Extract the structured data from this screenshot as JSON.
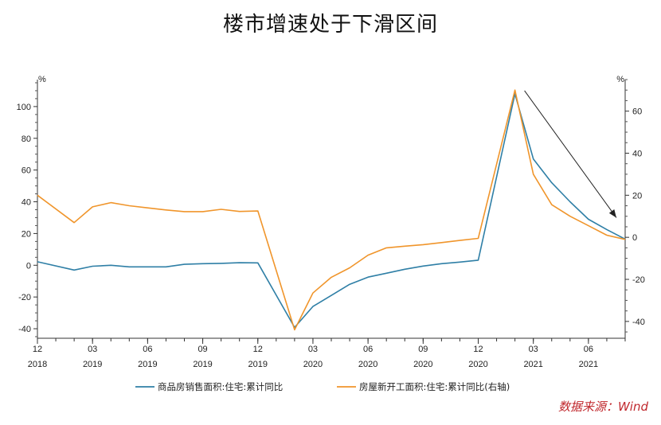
{
  "title": "楼市增速处于下滑区间",
  "source": "数据来源：Wind",
  "chart_data": {
    "type": "line",
    "x": [
      "2018-12",
      "2019-01",
      "2019-02",
      "2019-03",
      "2019-04",
      "2019-05",
      "2019-06",
      "2019-07",
      "2019-08",
      "2019-09",
      "2019-10",
      "2019-11",
      "2019-12",
      "2020-01",
      "2020-02",
      "2020-03",
      "2020-04",
      "2020-05",
      "2020-06",
      "2020-07",
      "2020-08",
      "2020-09",
      "2020-10",
      "2020-11",
      "2020-12",
      "2021-01",
      "2021-02",
      "2021-03",
      "2021-04",
      "2021-05",
      "2021-06",
      "2021-07",
      "2021-08"
    ],
    "series": [
      {
        "name": "商品房销售面积:住宅:累计同比",
        "axis": "left",
        "color": "#2f7fa6",
        "values": [
          2.2,
          null,
          -3.0,
          -0.6,
          0.0,
          -1.0,
          -1.0,
          -1.0,
          0.6,
          1.0,
          1.2,
          1.6,
          1.5,
          null,
          -39.2,
          -26.0,
          -19.0,
          -12.0,
          -7.5,
          -5.0,
          -2.5,
          -0.5,
          1.0,
          2.0,
          3.2,
          null,
          108.0,
          67.0,
          52.0,
          40.0,
          29.0,
          22.5,
          16.5
        ]
      },
      {
        "name": "房屋新开工面积:住宅:累计同比(右轴)",
        "axis": "right",
        "color": "#f0952b",
        "values": [
          20.0,
          null,
          7.0,
          14.5,
          16.5,
          15.0,
          14.0,
          13.0,
          12.2,
          12.2,
          13.3,
          12.3,
          12.5,
          null,
          -44.0,
          -26.5,
          -19.0,
          -14.5,
          -8.5,
          -5.0,
          -4.2,
          -3.5,
          -2.5,
          -1.5,
          -0.5,
          null,
          70.0,
          30.0,
          15.5,
          10.0,
          5.5,
          1.0,
          -1.0
        ]
      }
    ],
    "x_tick_labels": [
      {
        "x": "2018-12",
        "month": "12",
        "year": "2018"
      },
      {
        "x": "2019-03",
        "month": "03",
        "year": "2019"
      },
      {
        "x": "2019-06",
        "month": "06",
        "year": "2019"
      },
      {
        "x": "2019-09",
        "month": "09",
        "year": "2019"
      },
      {
        "x": "2019-12",
        "month": "12",
        "year": "2019"
      },
      {
        "x": "2020-03",
        "month": "03",
        "year": "2020"
      },
      {
        "x": "2020-06",
        "month": "06",
        "year": "2020"
      },
      {
        "x": "2020-09",
        "month": "09",
        "year": "2020"
      },
      {
        "x": "2020-12",
        "month": "12",
        "year": "2020"
      },
      {
        "x": "2021-03",
        "month": "03",
        "year": "2021"
      },
      {
        "x": "2021-06",
        "month": "06",
        "year": "2021"
      }
    ],
    "y_left": {
      "unit": "%",
      "ticks": [
        -40,
        -20,
        0,
        20,
        40,
        60,
        80,
        100
      ],
      "ylim": [
        -46,
        117
      ]
    },
    "y_right": {
      "unit": "%",
      "ticks": [
        -40,
        -20,
        0,
        20,
        40,
        60
      ],
      "ylim": [
        -48,
        75
      ]
    },
    "annotation": {
      "type": "arrow",
      "from": {
        "x": "2021-02",
        "y_left": 108
      },
      "to": {
        "x": "2021-07",
        "y_left": 32
      }
    },
    "legend_position": "bottom",
    "grid": false
  }
}
